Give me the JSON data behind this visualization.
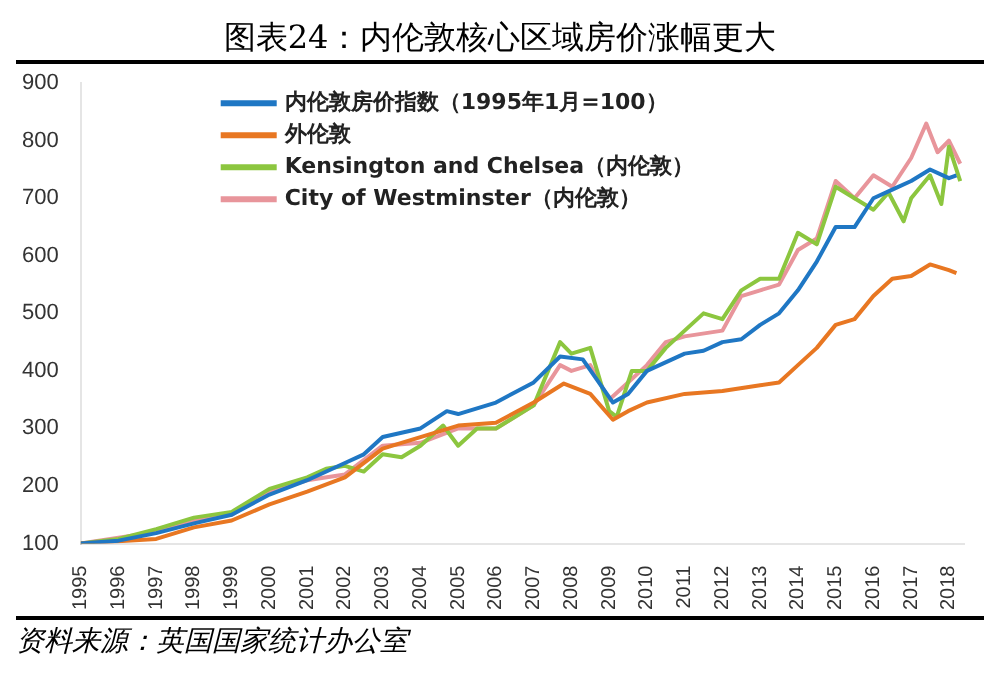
{
  "chart_data": {
    "type": "line",
    "title": "图表24：内伦敦核心区域房价涨幅更大",
    "annotations": [
      "资料来源：英国国家统计办公室"
    ],
    "xlim": [
      1995,
      2018.4
    ],
    "xticks": [
      1995,
      1996,
      1997,
      1998,
      1999,
      2000,
      2001,
      2002,
      2003,
      2004,
      2005,
      2006,
      2007,
      2008,
      2009,
      2010,
      2011,
      2012,
      2013,
      2014,
      2015,
      2016,
      2017,
      2018
    ],
    "ylim": [
      100,
      900
    ],
    "yticks": [
      100,
      200,
      300,
      400,
      500,
      600,
      700,
      800,
      900
    ],
    "grid": false,
    "legend": "top left",
    "marker": "none",
    "line_style": "solid",
    "series": [
      {
        "name": "内伦敦房价指数（1995年1月=100）",
        "color": "#1f77c4",
        "x": [
          1995,
          1996,
          1997,
          1998,
          1999,
          2000,
          2001,
          2002,
          2002.5,
          2003,
          2004,
          2004.7,
          2005,
          2006,
          2007,
          2007.7,
          2008.3,
          2009.1,
          2009.5,
          2010,
          2011,
          2011.5,
          2012,
          2012.5,
          2013,
          2013.5,
          2014,
          2014.5,
          2015,
          2015.5,
          2016,
          2016.5,
          2017,
          2017.5,
          2018,
          2018.2
        ],
        "values": [
          100,
          105,
          118,
          135,
          150,
          185,
          210,
          240,
          255,
          285,
          300,
          330,
          325,
          345,
          380,
          425,
          420,
          345,
          360,
          400,
          430,
          435,
          450,
          455,
          480,
          500,
          540,
          590,
          650,
          650,
          700,
          715,
          730,
          750,
          735,
          740
        ]
      },
      {
        "name": "外伦敦",
        "color": "#e87722",
        "x": [
          1995,
          1997,
          1998,
          1999,
          2000,
          2001,
          2002,
          2003,
          2004,
          2005,
          2006,
          2007,
          2007.8,
          2008.5,
          2009.1,
          2009.5,
          2010,
          2011,
          2012,
          2013,
          2013.5,
          2014,
          2014.5,
          2015,
          2015.5,
          2016,
          2016.5,
          2017,
          2017.5,
          2018,
          2018.2
        ],
        "values": [
          100,
          108,
          128,
          140,
          168,
          190,
          215,
          265,
          285,
          305,
          310,
          345,
          378,
          360,
          315,
          330,
          345,
          360,
          365,
          375,
          380,
          410,
          440,
          480,
          490,
          530,
          560,
          565,
          585,
          575,
          570
        ]
      },
      {
        "name": "Kensington and Chelsea（内伦敦）",
        "color": "#8cc63f",
        "x": [
          1995,
          1996,
          1997,
          1998,
          1999,
          2000,
          2001,
          2001.5,
          2002,
          2002.5,
          2003,
          2003.5,
          2004,
          2004.6,
          2005,
          2005.5,
          2006,
          2007,
          2007.7,
          2008,
          2008.5,
          2009,
          2009.2,
          2009.6,
          2010,
          2010.5,
          2011,
          2011.5,
          2012,
          2012.5,
          2013,
          2013.5,
          2014,
          2014.5,
          2015,
          2015.5,
          2016,
          2016.4,
          2016.8,
          2017,
          2017.5,
          2017.8,
          2018,
          2018.3
        ],
        "values": [
          100,
          108,
          125,
          145,
          155,
          195,
          215,
          230,
          235,
          225,
          255,
          250,
          270,
          305,
          270,
          300,
          300,
          340,
          450,
          430,
          440,
          330,
          320,
          400,
          400,
          440,
          470,
          500,
          490,
          540,
          560,
          560,
          640,
          620,
          720,
          700,
          680,
          710,
          660,
          700,
          740,
          690,
          790,
          730
        ]
      },
      {
        "name": "City of Westminster（内伦敦）",
        "color": "#e8959b",
        "x": [
          1995,
          1997,
          1998,
          1999,
          2000,
          2001,
          2002,
          2003,
          2004,
          2005,
          2006,
          2007,
          2007.7,
          2008,
          2008.5,
          2009,
          2009.5,
          2010,
          2010.5,
          2011,
          2012,
          2012.5,
          2013,
          2013.5,
          2014,
          2014.5,
          2015,
          2015.5,
          2016,
          2016.5,
          2017,
          2017.4,
          2017.7,
          2018,
          2018.3
        ],
        "values": [
          100,
          120,
          140,
          150,
          190,
          210,
          220,
          270,
          275,
          300,
          300,
          340,
          410,
          400,
          410,
          350,
          380,
          410,
          450,
          460,
          470,
          530,
          540,
          550,
          610,
          630,
          730,
          700,
          740,
          720,
          770,
          830,
          780,
          800,
          760
        ]
      }
    ]
  }
}
